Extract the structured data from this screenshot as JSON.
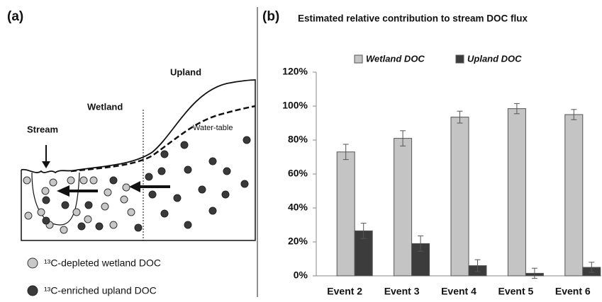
{
  "panel_a": {
    "label": "(a)",
    "upland": "Upland",
    "wetland": "Wetland",
    "stream": "Stream",
    "water_table": "Water-table",
    "legend": [
      "¹³C-depleted wetland DOC",
      "¹³C-enriched upland DOC"
    ]
  },
  "chart_data": {
    "type": "bar",
    "panel_label": "(b)",
    "title": "Estimated relative contribution to stream DOC flux",
    "categories": [
      "Event 2",
      "Event 3",
      "Event 4",
      "Event 5",
      "Event 6"
    ],
    "series": [
      {
        "name": "Wetland DOC",
        "color": "#c4c4c4",
        "values": [
          73,
          81,
          93.5,
          98.5,
          95
        ],
        "errors": [
          4.5,
          4.5,
          3.5,
          3,
          3
        ]
      },
      {
        "name": "Upland DOC",
        "color": "#3c3c3c",
        "values": [
          26.5,
          19,
          6,
          1.5,
          5
        ],
        "errors": [
          4.5,
          4.5,
          3.5,
          3,
          3
        ]
      }
    ],
    "ylim": [
      0,
      120
    ],
    "yticks": [
      {
        "value": 0,
        "label": "0%"
      },
      {
        "value": 20,
        "label": "20%"
      },
      {
        "value": 40,
        "label": "40%"
      },
      {
        "value": 60,
        "label": "60%"
      },
      {
        "value": 80,
        "label": "80%"
      },
      {
        "value": 100,
        "label": "100%"
      },
      {
        "value": 120,
        "label": "120%"
      }
    ],
    "grid": false,
    "legend": "top"
  }
}
